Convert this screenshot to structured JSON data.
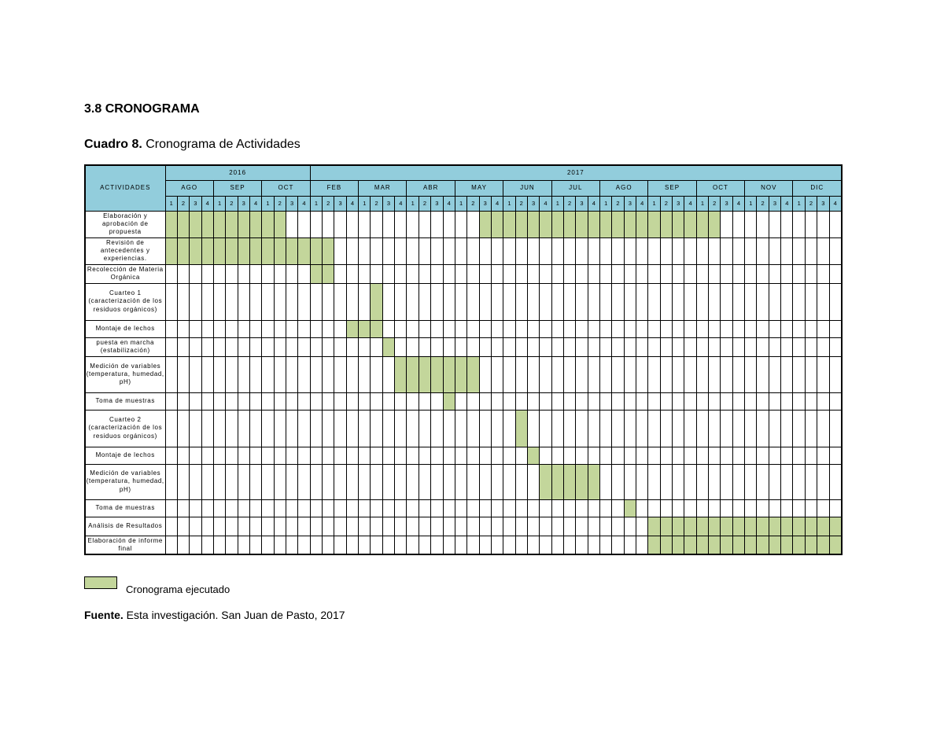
{
  "section_title": "3.8  CRONOGRAMA",
  "caption": {
    "label": "Cuadro 8.",
    "text": " Cronograma de Actividades"
  },
  "header": {
    "activities_label": "ACTIVIDADES",
    "years": [
      {
        "label": "2016",
        "months": [
          "AGO",
          "SEP",
          "OCT"
        ]
      },
      {
        "label": "2017",
        "months": [
          "FEB",
          "MAR",
          "ABR",
          "MAY",
          "JUN",
          "JUL",
          "AGO",
          "SEP",
          "OCT",
          "NOV",
          "DIC"
        ]
      }
    ],
    "weeks": [
      "1",
      "2",
      "3",
      "4"
    ]
  },
  "activities": [
    {
      "name": "Elaboración y aprobación de propuesta",
      "on": [
        1,
        2,
        3,
        4,
        5,
        6,
        7,
        8,
        9,
        10,
        27,
        28,
        29,
        30,
        31,
        32,
        33,
        34,
        35,
        36,
        37,
        38,
        39,
        40,
        41,
        42,
        43,
        44,
        45,
        46
      ]
    },
    {
      "name": "Revisión de antecedentes y experiencias.",
      "on": [
        1,
        2,
        3,
        4,
        5,
        6,
        7,
        8,
        9,
        10,
        11,
        12,
        13,
        14
      ]
    },
    {
      "name": "Recolección de Materia Orgánica",
      "on": [
        13,
        14
      ]
    },
    {
      "name": "Cuarteo 1 (caracterización de los residuos orgánicos)",
      "on": [
        18
      ]
    },
    {
      "name": "Montaje de lechos",
      "on": [
        16,
        17,
        18
      ]
    },
    {
      "name": "puesta en marcha (estabilización)",
      "on": [
        19
      ]
    },
    {
      "name": "Medición de variables (temperatura, humedad, pH)",
      "on": [
        20,
        21,
        22,
        23,
        24,
        25,
        26
      ]
    },
    {
      "name": "Toma de muestras",
      "on": [
        24
      ]
    },
    {
      "name": "Cuarteo 2 (caracterización de los residuos orgánicos)",
      "on": [
        30
      ]
    },
    {
      "name": "Montaje de lechos",
      "on": [
        31
      ]
    },
    {
      "name": "Medición de variables (temperatura, humedad, pH)",
      "on": [
        32,
        33,
        34,
        35,
        36
      ]
    },
    {
      "name": "Toma de muestras",
      "on": [
        39
      ]
    },
    {
      "name": "Análisis de Resultados",
      "on": [
        41,
        42,
        43,
        44,
        45,
        46,
        47,
        48,
        49,
        50,
        51,
        52,
        53,
        54,
        55,
        56
      ]
    },
    {
      "name": "Elaboración de informe final",
      "on": [
        41,
        42,
        43,
        44,
        45,
        46,
        47,
        48,
        49,
        50,
        51,
        52,
        53,
        54,
        55,
        56
      ]
    }
  ],
  "legend": {
    "label": "Cronograma ejecutado"
  },
  "source": {
    "label": "Fuente.",
    "text": " Esta investigación. San Juan de Pasto, 2017"
  },
  "colors": {
    "header_bg": "#92cddc",
    "executed": "#c3d69b"
  }
}
